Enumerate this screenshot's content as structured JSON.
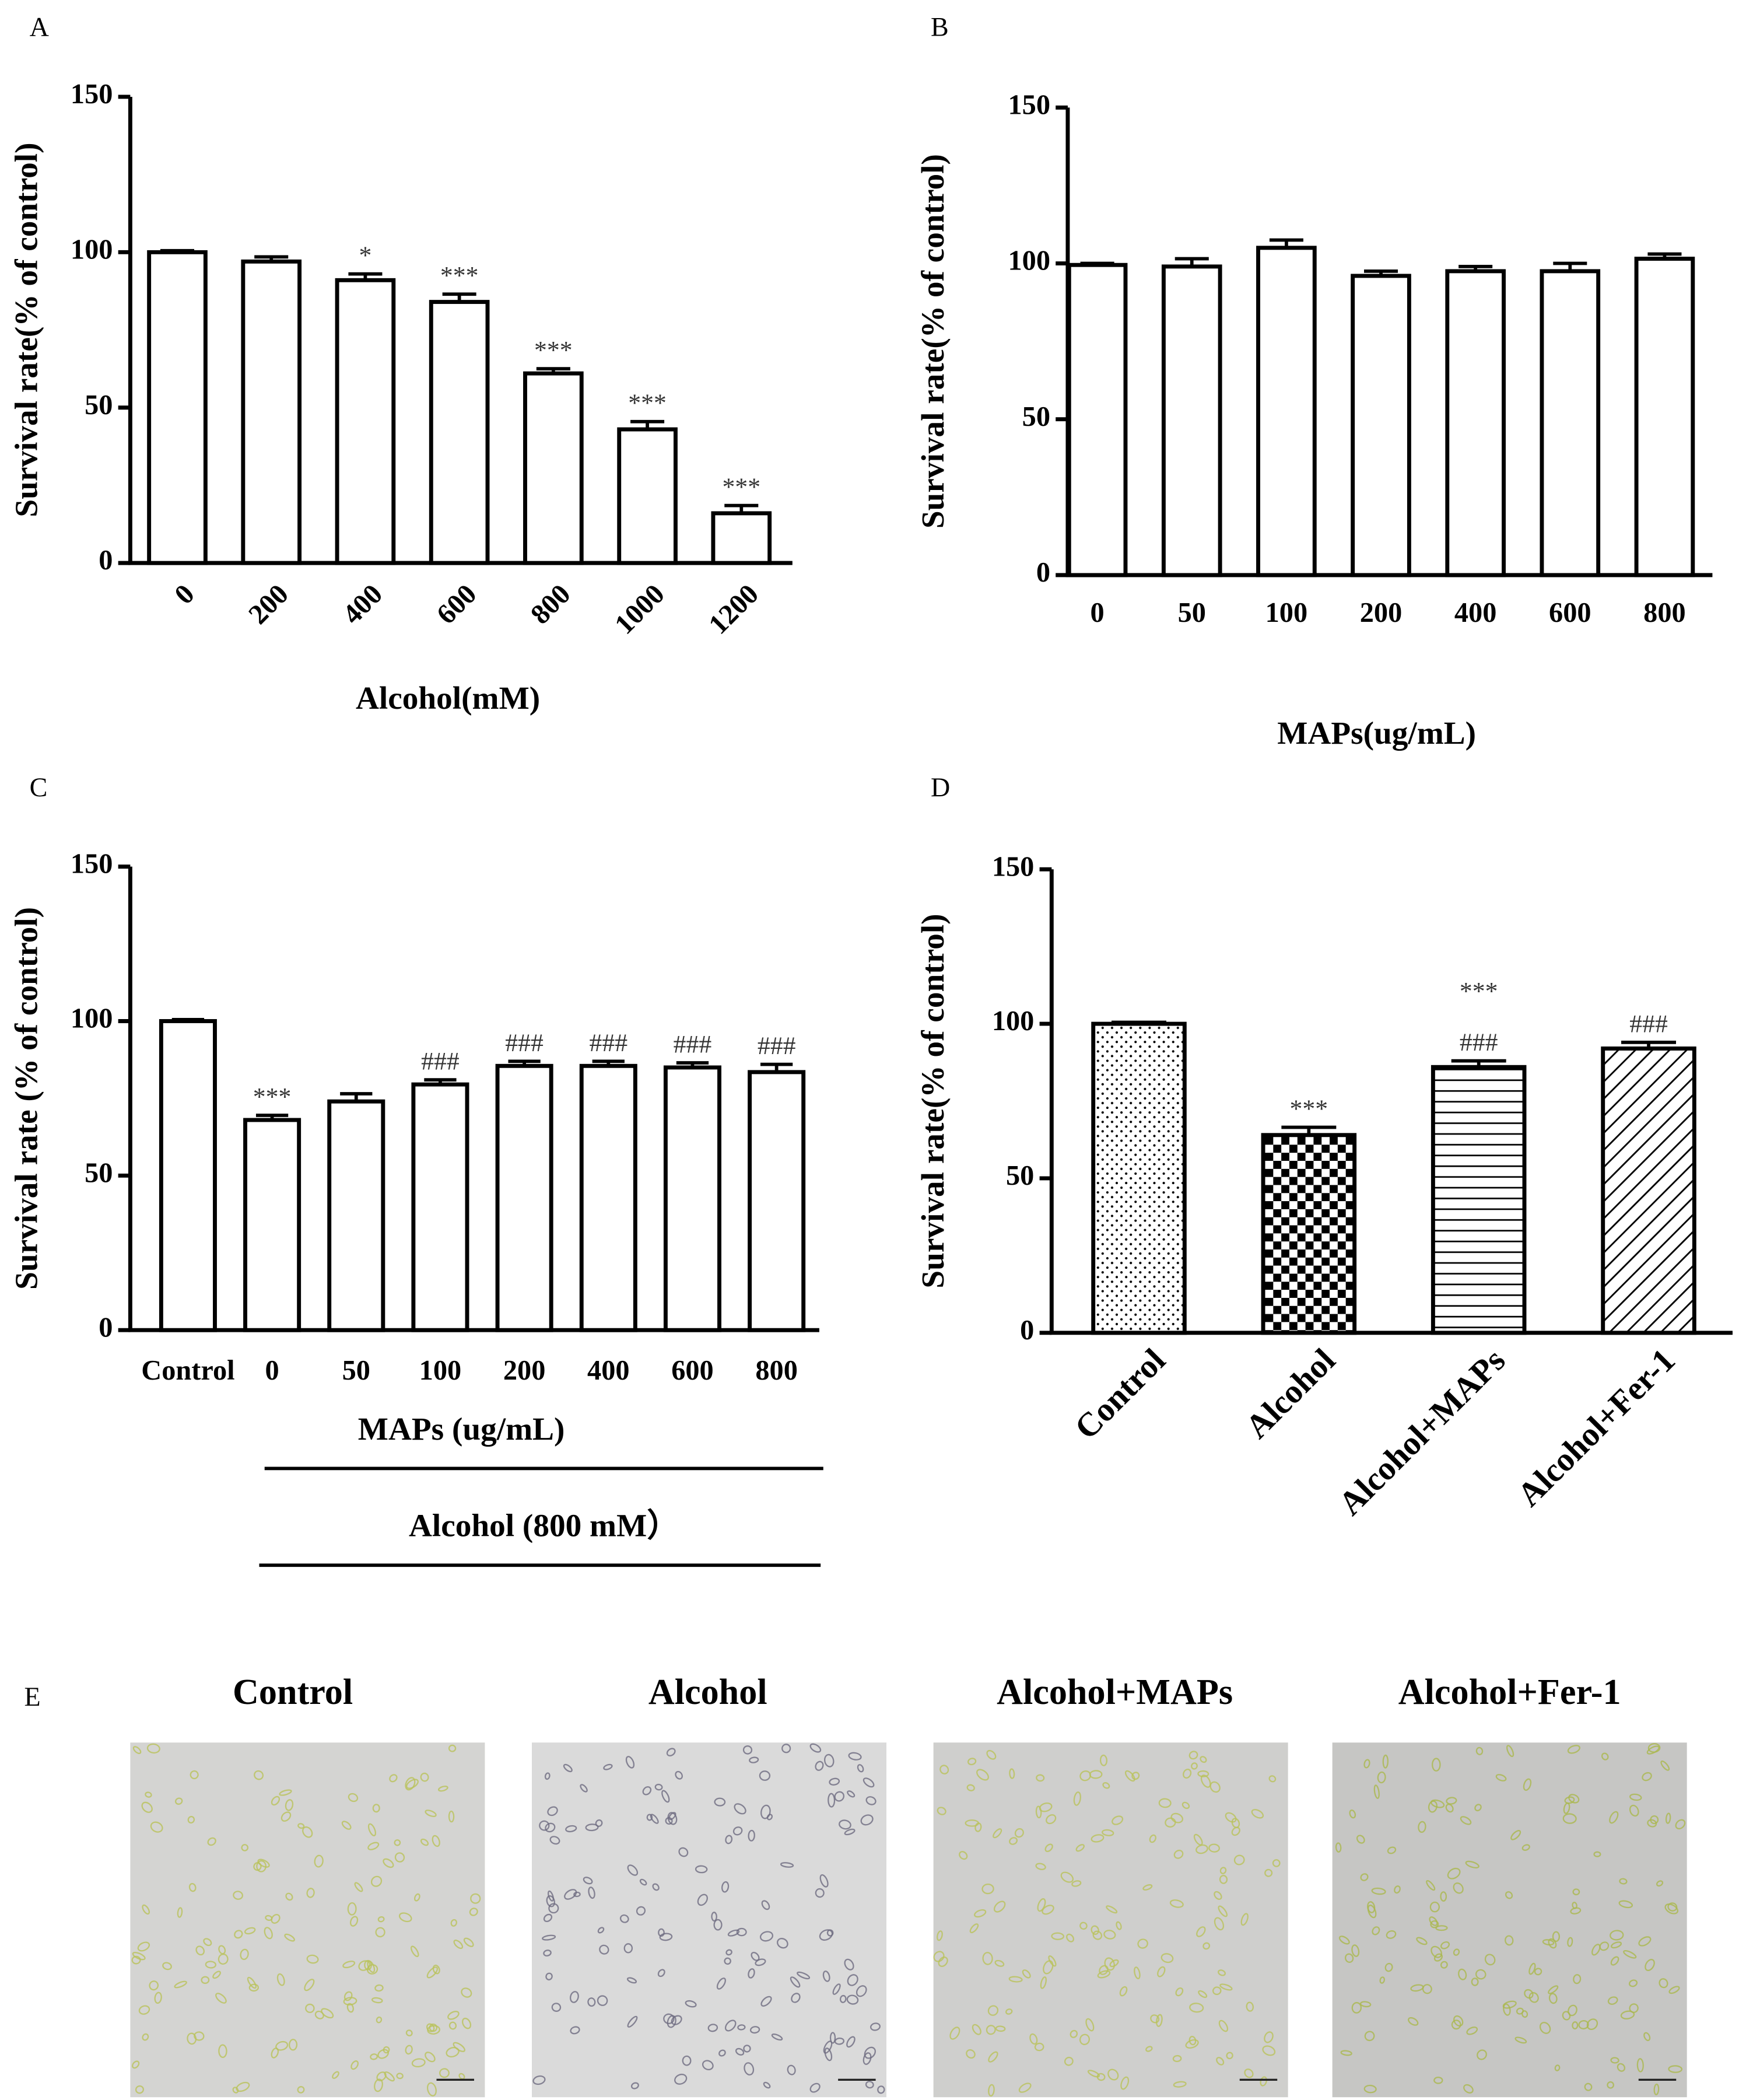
{
  "chart_data": [
    {
      "type": "bar",
      "panel": "A",
      "xlabel": "Alcohol(mM)",
      "ylabel": "Survival rate(% of control)",
      "categories": [
        "0",
        "200",
        "400",
        "600",
        "800",
        "1000",
        "1200"
      ],
      "values": [
        100,
        97,
        91,
        84,
        61,
        43,
        16
      ],
      "errors": [
        0.5,
        1.5,
        2,
        2.5,
        1.5,
        2.5,
        2.5
      ],
      "annotations": [
        null,
        null,
        "*",
        "***",
        "***",
        "***",
        "***"
      ],
      "ylim": [
        0,
        150
      ],
      "yticks": [
        0,
        50,
        100,
        150
      ],
      "color": "#ffffff",
      "rotate_labels": true
    },
    {
      "type": "bar",
      "panel": "B",
      "xlabel": "MAPs(ug/mL)",
      "ylabel": "Survival rate(% of control)",
      "categories": [
        "0",
        "50",
        "100",
        "200",
        "400",
        "600",
        "800"
      ],
      "values": [
        99.5,
        99,
        105,
        96,
        97.5,
        97.5,
        101.5
      ],
      "errors": [
        0.5,
        2.5,
        2.5,
        1.5,
        1.5,
        2.5,
        1.5
      ],
      "ylim": [
        0,
        150
      ],
      "yticks": [
        0,
        50,
        100,
        150
      ],
      "color": "#ffffff",
      "rotate_labels": false
    },
    {
      "type": "bar",
      "panel": "C",
      "xlabel": "MAPs (ug/mL)",
      "group_label": "Alcohol (800 mM）",
      "ylabel": "Survival rate (% of control)",
      "categories": [
        "Control",
        "0",
        "50",
        "100",
        "200",
        "400",
        "600",
        "800"
      ],
      "values": [
        100,
        68,
        74,
        79.5,
        85.5,
        85.5,
        85,
        83.5
      ],
      "errors": [
        0.5,
        1.5,
        2.5,
        1.5,
        1.5,
        1.5,
        1.5,
        2.5
      ],
      "annotations": [
        null,
        "***",
        null,
        "###",
        "###",
        "###",
        "###",
        "###"
      ],
      "ylim": [
        0,
        150
      ],
      "yticks": [
        0,
        50,
        100,
        150
      ],
      "color": "#ffffff",
      "rotate_labels": false
    },
    {
      "type": "bar",
      "panel": "D",
      "ylabel": "Survival rate(% of control)",
      "categories": [
        "Control",
        "Alcohol",
        "Alcohol+MAPs",
        "Alcohol+Fer-1"
      ],
      "values": [
        100,
        64,
        86,
        92
      ],
      "errors": [
        0.5,
        2.5,
        2,
        2
      ],
      "annotations": [
        null,
        "***",
        [
          "***",
          "###"
        ],
        "###"
      ],
      "patterns": [
        "dots",
        "checker",
        "hlines",
        "diagonal"
      ],
      "ylim": [
        0,
        150
      ],
      "yticks": [
        0,
        50,
        100,
        150
      ],
      "rotate_labels": true
    }
  ],
  "panel_e": {
    "panel": "E",
    "titles": [
      "Control",
      "Alcohol",
      "Alcohol+MAPs",
      "Alcohol+Fer-1"
    ]
  }
}
